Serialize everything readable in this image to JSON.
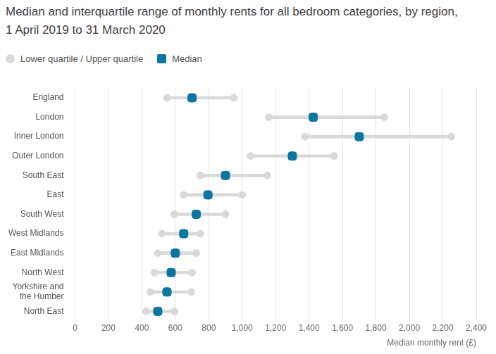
{
  "chart_data": {
    "type": "dumbbell",
    "title": "Median and interquartile range of monthly rents for all bedroom categories, by region, 1 April 2019 to 31 March 2020",
    "x_label": "Median monthly rent (£)",
    "orientation": "horizontal",
    "categories": [
      "England",
      "London",
      "Inner London",
      "Outer London",
      "South East",
      "East",
      "South West",
      "West Midlands",
      "East Midlands",
      "North West",
      "Yorkshire and the Humber",
      "North East"
    ],
    "series": [
      {
        "name": "Lower quartile / Upper quartile",
        "color": "#d9d9d9",
        "low": [
          550,
          1160,
          1375,
          1050,
          750,
          650,
          595,
          520,
          495,
          475,
          450,
          425
        ],
        "high": [
          950,
          1850,
          2250,
          1550,
          1150,
          1000,
          900,
          750,
          725,
          700,
          695,
          595
        ]
      },
      {
        "name": "Median",
        "color": "#0b76a0",
        "values": [
          700,
          1425,
          1700,
          1300,
          900,
          795,
          725,
          650,
          600,
          575,
          550,
          495
        ]
      }
    ],
    "xlim": [
      0,
      2400
    ],
    "xticks": [
      0,
      200,
      400,
      600,
      800,
      {
        "value": 1000,
        "label": "1,000"
      },
      {
        "value": 1200,
        "label": "1,200"
      },
      {
        "value": 1400,
        "label": "1,400"
      },
      {
        "value": 1600,
        "label": "1,600"
      },
      {
        "value": 1800,
        "label": "1,800"
      },
      {
        "value": 2000,
        "label": "2,000"
      },
      {
        "value": 2200,
        "label": "2,200"
      },
      {
        "value": 2400,
        "label": "2,400"
      }
    ],
    "grid": true,
    "legend": "top"
  }
}
